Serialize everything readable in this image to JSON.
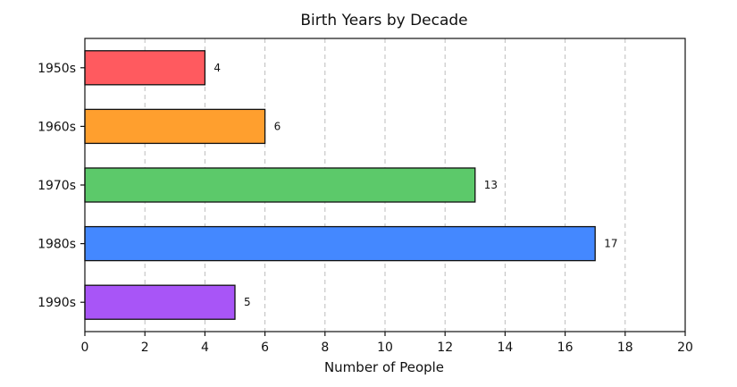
{
  "chart_data": {
    "type": "bar",
    "orientation": "horizontal",
    "title": "Birth Years by Decade",
    "xlabel": "Number of People",
    "ylabel": "",
    "categories": [
      "1950s",
      "1960s",
      "1970s",
      "1980s",
      "1990s"
    ],
    "values": [
      4,
      6,
      13,
      17,
      5
    ],
    "colors": [
      "#ff5a5f",
      "#ff9f2e",
      "#5cc96a",
      "#4488ff",
      "#a855f7"
    ],
    "xlim": [
      0,
      20
    ],
    "xticks": [
      0,
      2,
      4,
      6,
      8,
      10,
      12,
      14,
      16,
      18,
      20
    ],
    "grid": "vertical dashed",
    "data_labels": [
      "4",
      "6",
      "13",
      "17",
      "5"
    ]
  }
}
